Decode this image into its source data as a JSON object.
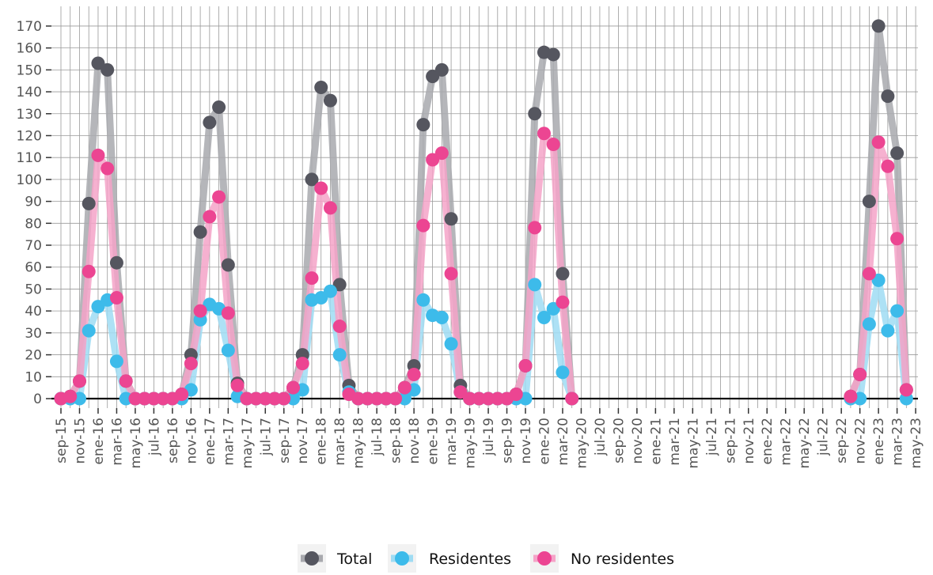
{
  "chart_data": {
    "type": "line",
    "title": "",
    "xlabel": "",
    "ylabel": "",
    "ylim": [
      0,
      170
    ],
    "y_ticks": [
      0,
      10,
      20,
      30,
      40,
      50,
      60,
      70,
      80,
      90,
      100,
      110,
      120,
      130,
      140,
      150,
      160,
      170
    ],
    "grid": true,
    "legend_position": "bottom",
    "x_tick_labels": [
      "sep-15",
      "nov-15",
      "ene-16",
      "mar-16",
      "may-16",
      "jul-16",
      "sep-16",
      "nov-16",
      "ene-17",
      "mar-17",
      "may-17",
      "jul-17",
      "sep-17",
      "nov-17",
      "ene-18",
      "mar-18",
      "may-18",
      "jul-18",
      "sep-18",
      "nov-18",
      "ene-19",
      "mar-19",
      "may-19",
      "jul-19",
      "sep-19",
      "nov-19",
      "ene-20",
      "mar-20",
      "may-20",
      "jul-20",
      "sep-20",
      "nov-20",
      "ene-21",
      "mar-21",
      "may-21",
      "jul-21",
      "sep-21",
      "nov-21",
      "ene-22",
      "mar-22",
      "may-22",
      "jul-22",
      "sep-22",
      "nov-22",
      "ene-23",
      "mar-23",
      "may-23"
    ],
    "series": [
      {
        "name": "Total",
        "color": "#55565f",
        "line_color": "#a8a9ae",
        "points": [
          [
            "sep-15",
            0
          ],
          [
            "oct-15",
            1
          ],
          [
            "nov-15",
            8
          ],
          [
            "dic-15",
            89
          ],
          [
            "ene-16",
            153
          ],
          [
            "feb-16",
            150
          ],
          [
            "mar-16",
            62
          ],
          [
            "abr-16",
            8
          ],
          [
            "may-16",
            0
          ],
          [
            "jun-16",
            0
          ],
          [
            "jul-16",
            0
          ],
          [
            "ago-16",
            0
          ],
          [
            "sep-16",
            0
          ],
          [
            "oct-16",
            2
          ],
          [
            "nov-16",
            20
          ],
          [
            "dic-16",
            76
          ],
          [
            "ene-17",
            126
          ],
          [
            "feb-17",
            133
          ],
          [
            "mar-17",
            61
          ],
          [
            "abr-17",
            7
          ],
          [
            "may-17",
            0
          ],
          [
            "jun-17",
            0
          ],
          [
            "jul-17",
            0
          ],
          [
            "ago-17",
            0
          ],
          [
            "sep-17",
            0
          ],
          [
            "oct-17",
            5
          ],
          [
            "nov-17",
            20
          ],
          [
            "dic-17",
            100
          ],
          [
            "ene-18",
            142
          ],
          [
            "feb-18",
            136
          ],
          [
            "mar-18",
            52
          ],
          [
            "abr-18",
            6
          ],
          [
            "may-18",
            0
          ],
          [
            "jun-18",
            0
          ],
          [
            "jul-18",
            0
          ],
          [
            "ago-18",
            0
          ],
          [
            "sep-18",
            0
          ],
          [
            "oct-18",
            5
          ],
          [
            "nov-18",
            15
          ],
          [
            "dic-18",
            125
          ],
          [
            "ene-19",
            147
          ],
          [
            "feb-19",
            150
          ],
          [
            "mar-19",
            82
          ],
          [
            "abr-19",
            6
          ],
          [
            "may-19",
            0
          ],
          [
            "jun-19",
            0
          ],
          [
            "jul-19",
            0
          ],
          [
            "ago-19",
            0
          ],
          [
            "sep-19",
            0
          ],
          [
            "oct-19",
            2
          ],
          [
            "nov-19",
            15
          ],
          [
            "dic-19",
            130
          ],
          [
            "ene-20",
            158
          ],
          [
            "feb-20",
            157
          ],
          [
            "mar-20",
            57
          ],
          [
            "abr-20",
            0
          ],
          [
            "oct-22",
            1
          ],
          [
            "nov-22",
            11
          ],
          [
            "dic-22",
            90
          ],
          [
            "ene-23",
            170
          ],
          [
            "feb-23",
            138
          ],
          [
            "mar-23",
            112
          ],
          [
            "abr-23",
            4
          ]
        ]
      },
      {
        "name": "Residentes",
        "color": "#3dbbea",
        "line_color": "#9fdcf3",
        "points": [
          [
            "sep-15",
            0
          ],
          [
            "oct-15",
            0
          ],
          [
            "nov-15",
            0
          ],
          [
            "dic-15",
            31
          ],
          [
            "ene-16",
            42
          ],
          [
            "feb-16",
            45
          ],
          [
            "mar-16",
            17
          ],
          [
            "abr-16",
            0
          ],
          [
            "may-16",
            0
          ],
          [
            "jun-16",
            0
          ],
          [
            "jul-16",
            0
          ],
          [
            "ago-16",
            0
          ],
          [
            "sep-16",
            0
          ],
          [
            "oct-16",
            0
          ],
          [
            "nov-16",
            4
          ],
          [
            "dic-16",
            36
          ],
          [
            "ene-17",
            43
          ],
          [
            "feb-17",
            41
          ],
          [
            "mar-17",
            22
          ],
          [
            "abr-17",
            1
          ],
          [
            "may-17",
            0
          ],
          [
            "jun-17",
            0
          ],
          [
            "jul-17",
            0
          ],
          [
            "ago-17",
            0
          ],
          [
            "sep-17",
            0
          ],
          [
            "oct-17",
            0
          ],
          [
            "nov-17",
            4
          ],
          [
            "dic-17",
            45
          ],
          [
            "ene-18",
            46
          ],
          [
            "feb-18",
            49
          ],
          [
            "mar-18",
            20
          ],
          [
            "abr-18",
            3
          ],
          [
            "may-18",
            0
          ],
          [
            "jun-18",
            0
          ],
          [
            "jul-18",
            0
          ],
          [
            "ago-18",
            0
          ],
          [
            "sep-18",
            0
          ],
          [
            "oct-18",
            0
          ],
          [
            "nov-18",
            4
          ],
          [
            "dic-18",
            45
          ],
          [
            "ene-19",
            38
          ],
          [
            "feb-19",
            37
          ],
          [
            "mar-19",
            25
          ],
          [
            "abr-19",
            3
          ],
          [
            "may-19",
            0
          ],
          [
            "jun-19",
            0
          ],
          [
            "jul-19",
            0
          ],
          [
            "ago-19",
            0
          ],
          [
            "sep-19",
            0
          ],
          [
            "oct-19",
            0
          ],
          [
            "nov-19",
            0
          ],
          [
            "dic-19",
            52
          ],
          [
            "ene-20",
            37
          ],
          [
            "feb-20",
            41
          ],
          [
            "mar-20",
            12
          ],
          [
            "abr-20",
            0
          ],
          [
            "oct-22",
            0
          ],
          [
            "nov-22",
            0
          ],
          [
            "dic-22",
            34
          ],
          [
            "ene-23",
            54
          ],
          [
            "feb-23",
            31
          ],
          [
            "mar-23",
            40
          ],
          [
            "abr-23",
            0
          ]
        ]
      },
      {
        "name": "No residentes",
        "color": "#ec4592",
        "line_color": "#f5a3c8",
        "points": [
          [
            "sep-15",
            0
          ],
          [
            "oct-15",
            1
          ],
          [
            "nov-15",
            8
          ],
          [
            "dic-15",
            58
          ],
          [
            "ene-16",
            111
          ],
          [
            "feb-16",
            105
          ],
          [
            "mar-16",
            46
          ],
          [
            "abr-16",
            8
          ],
          [
            "may-16",
            0
          ],
          [
            "jun-16",
            0
          ],
          [
            "jul-16",
            0
          ],
          [
            "ago-16",
            0
          ],
          [
            "sep-16",
            0
          ],
          [
            "oct-16",
            2
          ],
          [
            "nov-16",
            16
          ],
          [
            "dic-16",
            40
          ],
          [
            "ene-17",
            83
          ],
          [
            "feb-17",
            92
          ],
          [
            "mar-17",
            39
          ],
          [
            "abr-17",
            6
          ],
          [
            "may-17",
            0
          ],
          [
            "jun-17",
            0
          ],
          [
            "jul-17",
            0
          ],
          [
            "ago-17",
            0
          ],
          [
            "sep-17",
            0
          ],
          [
            "oct-17",
            5
          ],
          [
            "nov-17",
            16
          ],
          [
            "dic-17",
            55
          ],
          [
            "ene-18",
            96
          ],
          [
            "feb-18",
            87
          ],
          [
            "mar-18",
            33
          ],
          [
            "abr-18",
            2
          ],
          [
            "may-18",
            0
          ],
          [
            "jun-18",
            0
          ],
          [
            "jul-18",
            0
          ],
          [
            "ago-18",
            0
          ],
          [
            "sep-18",
            0
          ],
          [
            "oct-18",
            5
          ],
          [
            "nov-18",
            11
          ],
          [
            "dic-18",
            79
          ],
          [
            "ene-19",
            109
          ],
          [
            "feb-19",
            112
          ],
          [
            "mar-19",
            57
          ],
          [
            "abr-19",
            3
          ],
          [
            "may-19",
            0
          ],
          [
            "jun-19",
            0
          ],
          [
            "jul-19",
            0
          ],
          [
            "ago-19",
            0
          ],
          [
            "sep-19",
            0
          ],
          [
            "oct-19",
            2
          ],
          [
            "nov-19",
            15
          ],
          [
            "dic-19",
            78
          ],
          [
            "ene-20",
            121
          ],
          [
            "feb-20",
            116
          ],
          [
            "mar-20",
            44
          ],
          [
            "abr-20",
            0
          ],
          [
            "oct-22",
            1
          ],
          [
            "nov-22",
            11
          ],
          [
            "dic-22",
            57
          ],
          [
            "ene-23",
            117
          ],
          [
            "feb-23",
            106
          ],
          [
            "mar-23",
            73
          ],
          [
            "abr-23",
            4
          ]
        ]
      }
    ]
  }
}
